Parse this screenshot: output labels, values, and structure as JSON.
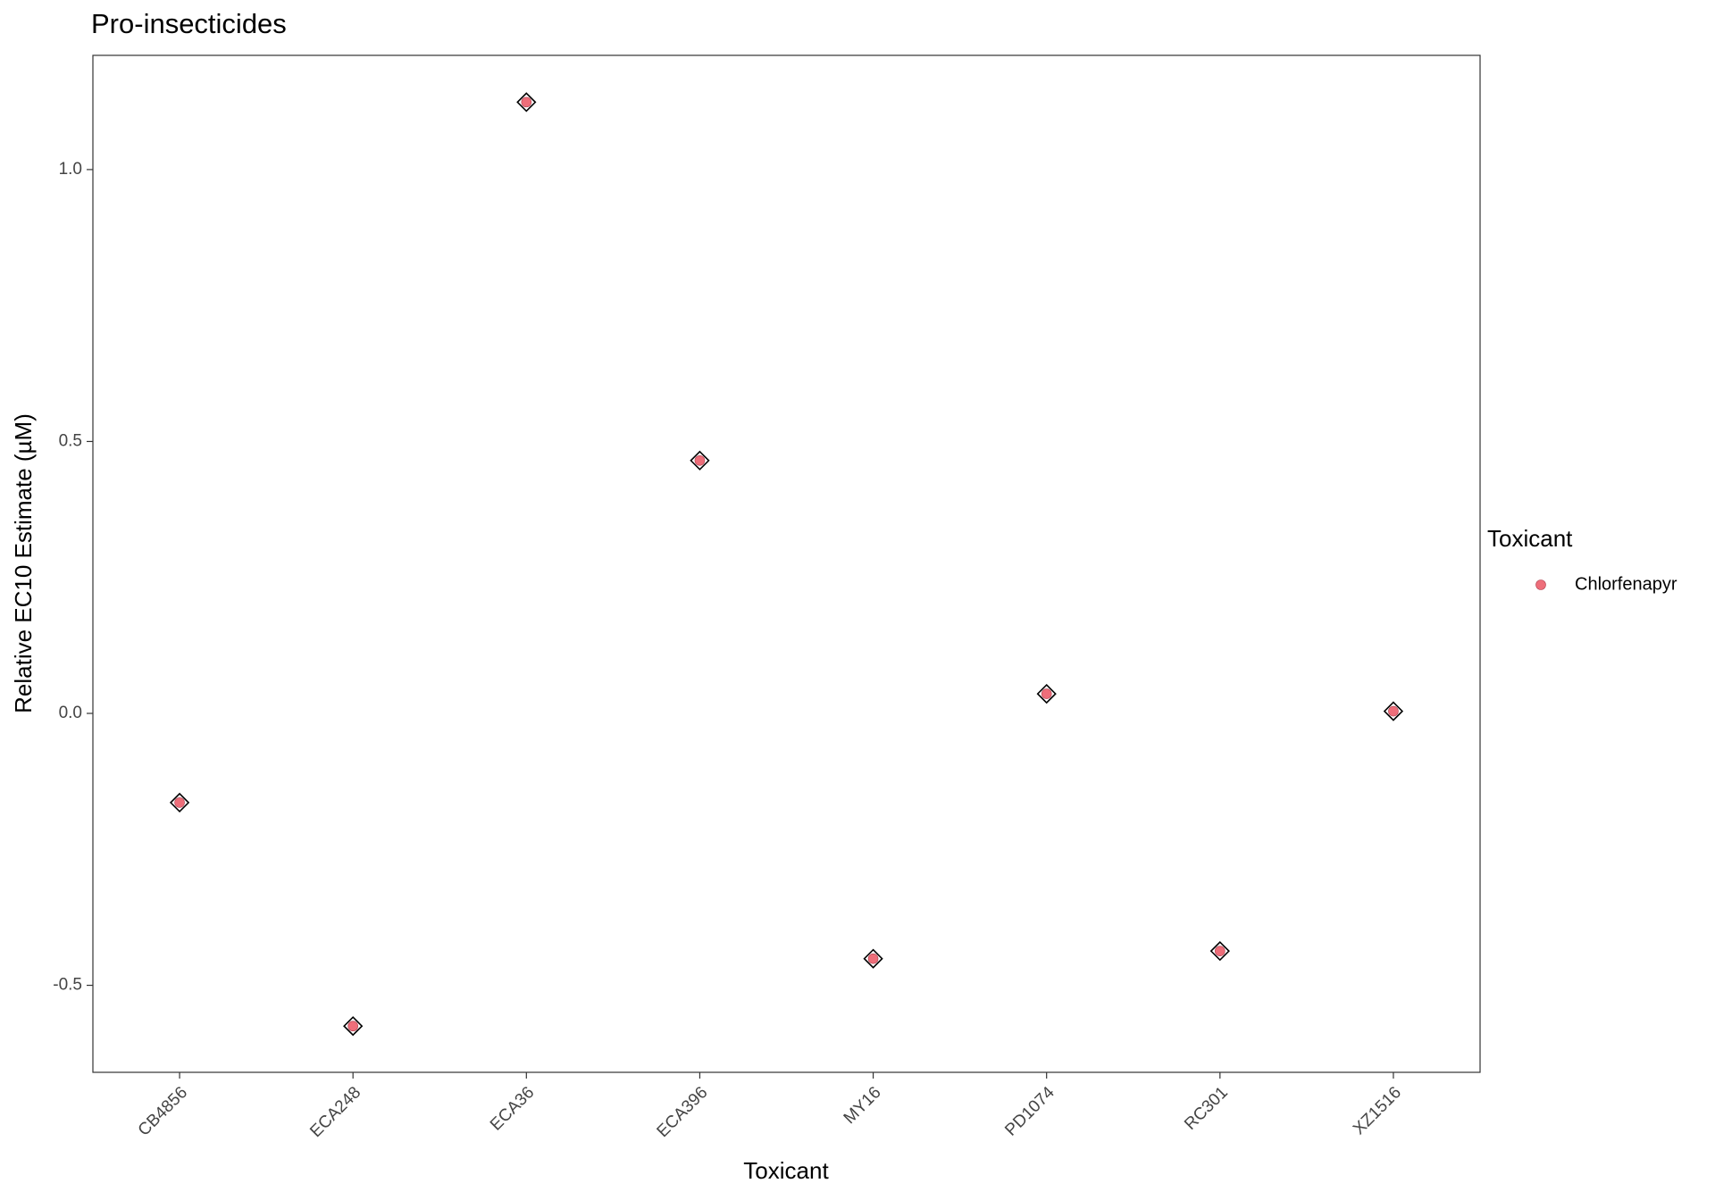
{
  "chart_data": {
    "type": "scatter",
    "title": "Pro-insecticides",
    "x_label": "Toxicant",
    "y_label": "Relative EC10 Estimate (µM)",
    "categories": [
      "CB4856",
      "ECA248",
      "ECA36",
      "ECA396",
      "MY16",
      "PD1074",
      "RC301",
      "XZ1516"
    ],
    "series": [
      {
        "name": "Chlorfenapyr",
        "color": "#ee6e7a",
        "values": [
          -0.164,
          -0.575,
          1.124,
          0.465,
          -0.451,
          0.036,
          -0.437,
          0.004
        ]
      }
    ],
    "legend_title": "Toxicant",
    "legend": "right",
    "ylim": [
      -0.66,
      1.21
    ],
    "yticks": [
      {
        "value": -0.5,
        "label": "-0.5"
      },
      {
        "value": 0,
        "label": "0.0"
      },
      0.5,
      {
        "value": 1,
        "label": "1.0"
      }
    ],
    "grid": false
  }
}
